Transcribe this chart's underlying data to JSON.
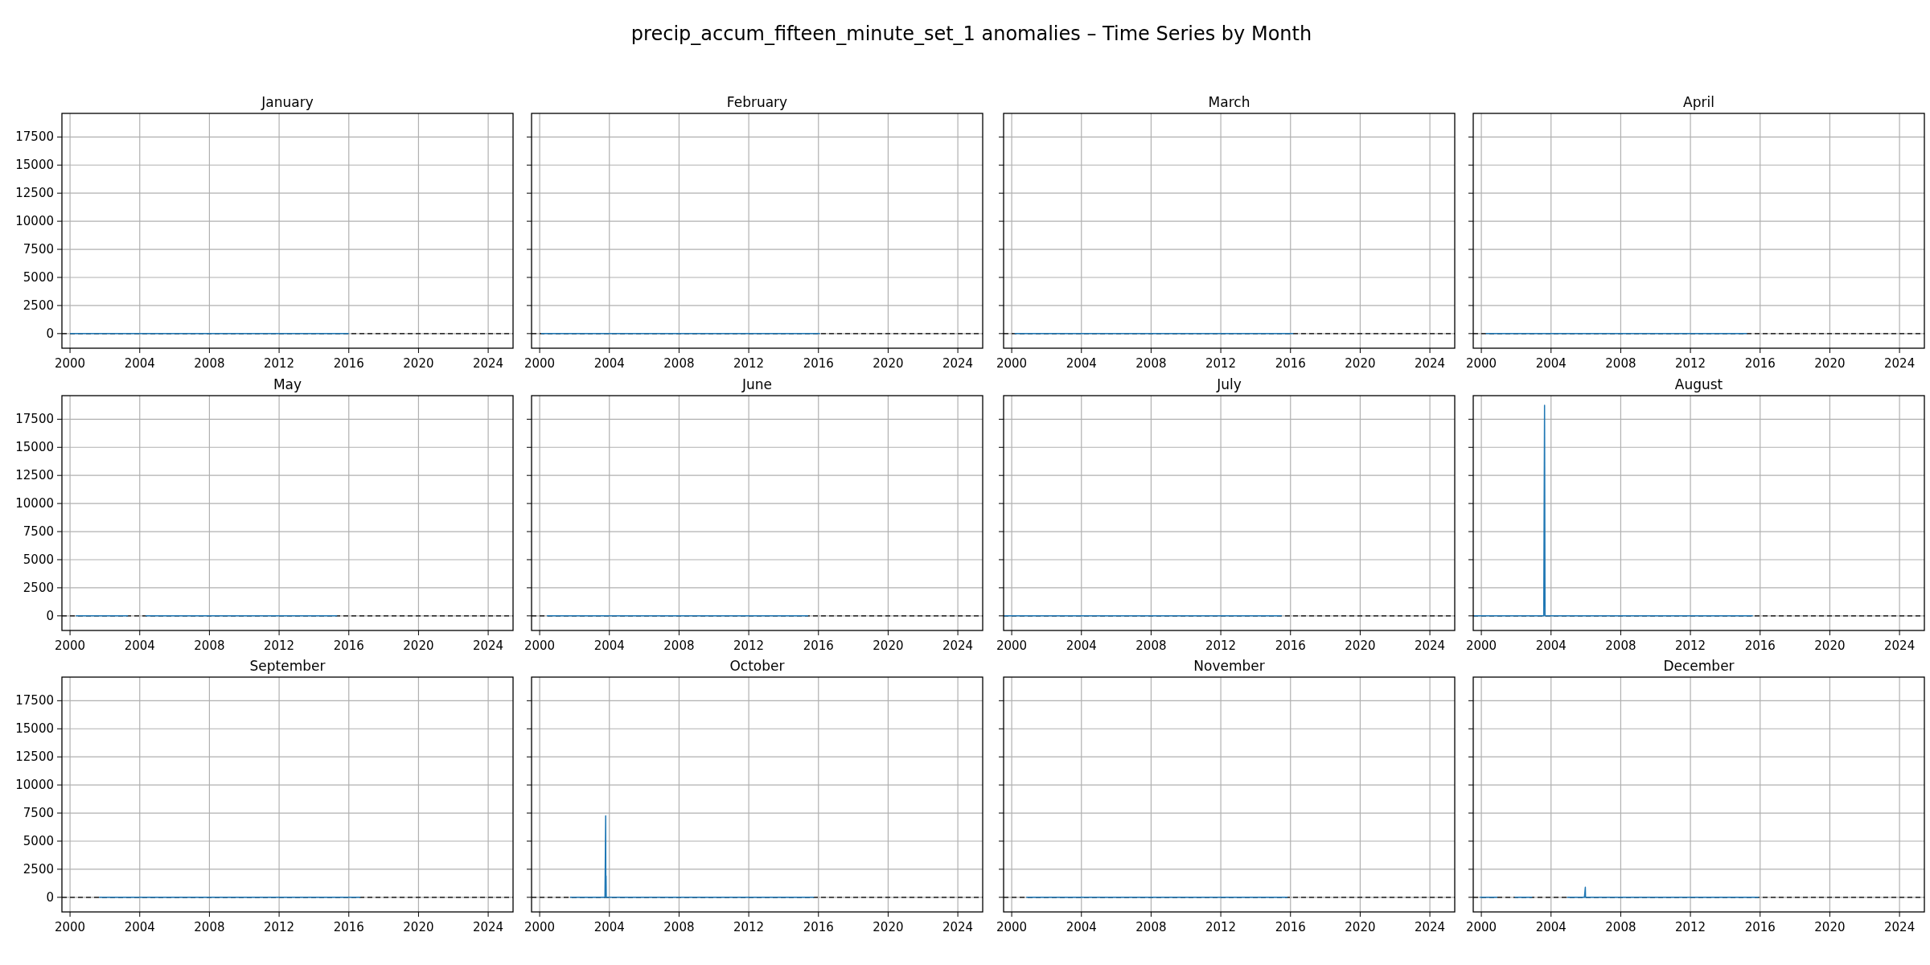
{
  "chart_data": [
    {
      "type": "line",
      "title": "January",
      "annotations": [
        "precip_accum_fifteen_minute_set_1 anomalies – Time Series by Month"
      ],
      "xlim": [
        "1999-07-15",
        "2025-06-05"
      ],
      "ylim": [
        -1300,
        19600
      ],
      "xticks": [
        "2000",
        "2004",
        "2008",
        "2012",
        "2016",
        "2020",
        "2024"
      ],
      "yticks": [
        0,
        2500,
        5000,
        7500,
        10000,
        12500,
        15000,
        17500
      ],
      "grid": true,
      "ref_lines": [
        {
          "axis": "y",
          "value": 0,
          "color": "#000000",
          "line_style": "dashed"
        }
      ],
      "series": [
        {
          "color": "#1f77b4",
          "x": [
            "2000-01",
            "2001-01",
            "2002-01",
            "2003-01",
            "2004-01",
            "2005-01",
            "2006-01",
            "2007-01",
            "2008-01",
            "2009-01",
            "2010-01",
            "2011-01",
            "2012-01",
            "2013-01",
            "2014-01",
            "2015-01",
            "2016-01"
          ],
          "values": [
            0,
            0,
            0,
            0,
            0,
            0,
            0,
            0,
            0,
            0,
            0,
            0,
            0,
            0,
            0,
            0,
            0
          ]
        }
      ]
    },
    {
      "type": "line",
      "title": "February",
      "tick_labels": "x",
      "xlim": [
        "1999-07-15",
        "2025-06-05"
      ],
      "ylim": [
        -1300,
        19600
      ],
      "xticks": [
        "2000",
        "2004",
        "2008",
        "2012",
        "2016",
        "2020",
        "2024"
      ],
      "yticks": [
        0,
        2500,
        5000,
        7500,
        10000,
        12500,
        15000,
        17500
      ],
      "grid": true,
      "ref_lines": [
        {
          "axis": "y",
          "value": 0,
          "color": "#000000",
          "line_style": "dashed"
        }
      ],
      "series": [
        {
          "color": "#1f77b4",
          "x": [
            "2000-02",
            "2001-02",
            "2002-02",
            "2003-02",
            "2004-02",
            "2005-02",
            "2006-02",
            "2007-02",
            "2008-02",
            "2009-02",
            "2010-02",
            "2011-02",
            "2012-02",
            "2013-02",
            "2014-02",
            "2015-02",
            "2016-02"
          ],
          "values": [
            0,
            0,
            0,
            0,
            0,
            0,
            0,
            0,
            0,
            0,
            0,
            0,
            0,
            0,
            0,
            0,
            0
          ]
        }
      ]
    },
    {
      "type": "line",
      "title": "March",
      "tick_labels": "x",
      "xlim": [
        "1999-07-15",
        "2025-06-05"
      ],
      "ylim": [
        -1300,
        19600
      ],
      "xticks": [
        "2000",
        "2004",
        "2008",
        "2012",
        "2016",
        "2020",
        "2024"
      ],
      "yticks": [
        0,
        2500,
        5000,
        7500,
        10000,
        12500,
        15000,
        17500
      ],
      "grid": true,
      "ref_lines": [
        {
          "axis": "y",
          "value": 0,
          "color": "#000000",
          "line_style": "dashed"
        }
      ],
      "series": [
        {
          "color": "#1f77b4",
          "x": [
            "2000-03",
            "2001-03",
            "2002-03",
            "2003-03",
            "2004-03",
            "2005-03",
            "2006-03",
            "2007-03",
            "2008-03",
            "2009-03",
            "2010-03",
            "2011-03",
            "2012-03",
            "2013-03",
            "2014-03",
            "2015-03",
            "2016-03"
          ],
          "values": [
            0,
            0,
            0,
            0,
            0,
            0,
            0,
            0,
            0,
            0,
            0,
            0,
            0,
            0,
            0,
            0,
            0
          ]
        }
      ]
    },
    {
      "type": "line",
      "title": "April",
      "tick_labels": "x",
      "xlim": [
        "1999-07-15",
        "2025-06-05"
      ],
      "ylim": [
        -1300,
        19600
      ],
      "xticks": [
        "2000",
        "2004",
        "2008",
        "2012",
        "2016",
        "2020",
        "2024"
      ],
      "yticks": [
        0,
        2500,
        5000,
        7500,
        10000,
        12500,
        15000,
        17500
      ],
      "grid": true,
      "ref_lines": [
        {
          "axis": "y",
          "value": 0,
          "color": "#000000",
          "line_style": "dashed"
        }
      ],
      "series": [
        {
          "color": "#1f77b4",
          "x": [
            "2000-04",
            "2001-04",
            "2002-04",
            "2003-04",
            "2004-04",
            "2005-04",
            "2006-04",
            "2007-04",
            "2008-04",
            "2009-04",
            "2010-04",
            "2011-04",
            "2012-04",
            "2013-04",
            "2014-04",
            "2015-04"
          ],
          "values": [
            0,
            0,
            0,
            0,
            0,
            0,
            0,
            0,
            0,
            0,
            0,
            0,
            0,
            0,
            0,
            0
          ]
        }
      ]
    },
    {
      "type": "line",
      "title": "May",
      "xlim": [
        "1999-07-15",
        "2025-06-05"
      ],
      "ylim": [
        -1300,
        19600
      ],
      "xticks": [
        "2000",
        "2004",
        "2008",
        "2012",
        "2016",
        "2020",
        "2024"
      ],
      "yticks": [
        0,
        2500,
        5000,
        7500,
        10000,
        12500,
        15000,
        17500
      ],
      "grid": true,
      "ref_lines": [
        {
          "axis": "y",
          "value": 0,
          "color": "#000000",
          "line_style": "dashed"
        }
      ],
      "series": [
        {
          "color": "#1f77b4",
          "x": [
            "2000-05",
            "2001-05",
            "2002-05",
            "2003-05",
            "2003-11",
            "2004-05",
            "2005-05",
            "2006-05",
            "2007-05",
            "2008-05",
            "2009-05",
            "2010-05",
            "2011-05",
            "2012-05",
            "2013-05",
            "2014-05",
            "2015-05"
          ],
          "values": [
            0,
            0,
            0,
            0,
            null,
            0,
            0,
            0,
            0,
            0,
            0,
            0,
            0,
            0,
            0,
            0,
            0
          ]
        }
      ]
    },
    {
      "type": "line",
      "title": "June",
      "tick_labels": "x",
      "xlim": [
        "1999-07-15",
        "2025-06-05"
      ],
      "ylim": [
        -1300,
        19600
      ],
      "xticks": [
        "2000",
        "2004",
        "2008",
        "2012",
        "2016",
        "2020",
        "2024"
      ],
      "yticks": [
        0,
        2500,
        5000,
        7500,
        10000,
        12500,
        15000,
        17500
      ],
      "grid": true,
      "ref_lines": [
        {
          "axis": "y",
          "value": 0,
          "color": "#000000",
          "line_style": "dashed"
        }
      ],
      "series": [
        {
          "color": "#1f77b4",
          "x": [
            "2000-06",
            "2001-06",
            "2002-06",
            "2003-06",
            "2004-06",
            "2005-06",
            "2006-06",
            "2007-06",
            "2008-06",
            "2009-06",
            "2010-06",
            "2011-06",
            "2012-06",
            "2013-06",
            "2014-06",
            "2015-06"
          ],
          "values": [
            0,
            0,
            0,
            0,
            0,
            0,
            0,
            0,
            0,
            0,
            0,
            0,
            0,
            0,
            0,
            0
          ]
        }
      ]
    },
    {
      "type": "line",
      "title": "July",
      "tick_labels": "x",
      "xlim": [
        "1999-07-15",
        "2025-06-05"
      ],
      "ylim": [
        -1300,
        19600
      ],
      "xticks": [
        "2000",
        "2004",
        "2008",
        "2012",
        "2016",
        "2020",
        "2024"
      ],
      "yticks": [
        0,
        2500,
        5000,
        7500,
        10000,
        12500,
        15000,
        17500
      ],
      "grid": true,
      "ref_lines": [
        {
          "axis": "y",
          "value": 0,
          "color": "#000000",
          "line_style": "dashed"
        }
      ],
      "series": [
        {
          "color": "#1f77b4",
          "x": [
            "1999-07-20",
            "2000-07",
            "2001-07",
            "2002-07",
            "2003-07",
            "2004-07",
            "2005-07",
            "2006-07",
            "2007-07",
            "2008-07",
            "2009-07",
            "2010-07",
            "2011-07",
            "2012-07",
            "2013-07",
            "2014-07",
            "2015-07"
          ],
          "values": [
            0,
            0,
            0,
            0,
            0,
            0,
            0,
            0,
            0,
            0,
            0,
            0,
            0,
            0,
            0,
            0,
            0
          ]
        }
      ]
    },
    {
      "type": "line",
      "title": "August",
      "tick_labels": "x",
      "xlim": [
        "1999-07-15",
        "2025-06-05"
      ],
      "ylim": [
        -1300,
        19600
      ],
      "xticks": [
        "2000",
        "2004",
        "2008",
        "2012",
        "2016",
        "2020",
        "2024"
      ],
      "yticks": [
        0,
        2500,
        5000,
        7500,
        10000,
        12500,
        15000,
        17500
      ],
      "grid": true,
      "ref_lines": [
        {
          "axis": "y",
          "value": 0,
          "color": "#000000",
          "line_style": "dashed"
        }
      ],
      "series": [
        {
          "color": "#1f77b4",
          "x": [
            "1999-08",
            "2000-08",
            "2001-08",
            "2002-08",
            "2003-08",
            "2003-08-18",
            "2003-08-28",
            "2004-08",
            "2005-08",
            "2006-08",
            "2007-08",
            "2008-08",
            "2009-08",
            "2010-08",
            "2011-08",
            "2012-08",
            "2013-08",
            "2014-08",
            "2015-08"
          ],
          "values": [
            0,
            0,
            0,
            0,
            0,
            18750,
            0,
            0,
            0,
            0,
            0,
            0,
            0,
            0,
            0,
            0,
            0,
            0,
            0
          ]
        }
      ]
    },
    {
      "type": "line",
      "title": "September",
      "xlim": [
        "1999-07-15",
        "2025-06-05"
      ],
      "ylim": [
        -1300,
        19600
      ],
      "xticks": [
        "2000",
        "2004",
        "2008",
        "2012",
        "2016",
        "2020",
        "2024"
      ],
      "yticks": [
        0,
        2500,
        5000,
        7500,
        10000,
        12500,
        15000,
        17500
      ],
      "grid": true,
      "ref_lines": [
        {
          "axis": "y",
          "value": 0,
          "color": "#000000",
          "line_style": "dashed"
        }
      ],
      "series": [
        {
          "color": "#1f77b4",
          "x": [
            "2001-09",
            "2002-09",
            "2003-09",
            "2004-09",
            "2005-09",
            "2006-09",
            "2007-09",
            "2008-09",
            "2009-09",
            "2010-09",
            "2011-09",
            "2012-09",
            "2013-09",
            "2014-09",
            "2015-09",
            "2016-09"
          ],
          "values": [
            0,
            0,
            0,
            0,
            0,
            0,
            0,
            0,
            0,
            0,
            0,
            0,
            0,
            0,
            0,
            0
          ]
        }
      ]
    },
    {
      "type": "line",
      "title": "October",
      "tick_labels": "x",
      "xlim": [
        "1999-07-15",
        "2025-06-05"
      ],
      "ylim": [
        -1300,
        19600
      ],
      "xticks": [
        "2000",
        "2004",
        "2008",
        "2012",
        "2016",
        "2020",
        "2024"
      ],
      "yticks": [
        0,
        2500,
        5000,
        7500,
        10000,
        12500,
        15000,
        17500
      ],
      "grid": true,
      "ref_lines": [
        {
          "axis": "y",
          "value": 0,
          "color": "#000000",
          "line_style": "dashed"
        }
      ],
      "series": [
        {
          "color": "#1f77b4",
          "x": [
            "2001-10",
            "2002-10",
            "2003-10",
            "2003-10-16",
            "2003-10-20",
            "2003-10-24",
            "2003-10-28",
            "2004-10",
            "2005-10",
            "2006-10",
            "2007-10",
            "2008-10",
            "2009-10",
            "2010-10",
            "2011-10",
            "2012-10",
            "2013-10",
            "2014-10",
            "2015-10"
          ],
          "values": [
            0,
            0,
            0,
            7250,
            0,
            1900,
            0,
            0,
            0,
            0,
            0,
            0,
            0,
            0,
            0,
            0,
            0,
            0,
            0
          ]
        }
      ]
    },
    {
      "type": "line",
      "title": "November",
      "tick_labels": "x",
      "xlim": [
        "1999-07-15",
        "2025-06-05"
      ],
      "ylim": [
        -1300,
        19600
      ],
      "xticks": [
        "2000",
        "2004",
        "2008",
        "2012",
        "2016",
        "2020",
        "2024"
      ],
      "yticks": [
        0,
        2500,
        5000,
        7500,
        10000,
        12500,
        15000,
        17500
      ],
      "grid": true,
      "ref_lines": [
        {
          "axis": "y",
          "value": 0,
          "color": "#000000",
          "line_style": "dashed"
        }
      ],
      "series": [
        {
          "color": "#1f77b4",
          "x": [
            "2000-11",
            "2001-11",
            "2002-11",
            "2003-11",
            "2004-11",
            "2005-11",
            "2006-11",
            "2007-11",
            "2008-11",
            "2009-11",
            "2010-11",
            "2011-11",
            "2012-11",
            "2013-11",
            "2014-11",
            "2015-11"
          ],
          "values": [
            0,
            0,
            0,
            0,
            0,
            0,
            0,
            0,
            0,
            0,
            0,
            0,
            0,
            0,
            0,
            0
          ]
        }
      ]
    },
    {
      "type": "line",
      "title": "December",
      "tick_labels": "x",
      "xlim": [
        "1999-07-15",
        "2025-06-05"
      ],
      "ylim": [
        -1300,
        19600
      ],
      "xticks": [
        "2000",
        "2004",
        "2008",
        "2012",
        "2016",
        "2020",
        "2024"
      ],
      "yticks": [
        0,
        2500,
        5000,
        7500,
        10000,
        12500,
        15000,
        17500
      ],
      "grid": true,
      "ref_lines": [
        {
          "axis": "y",
          "value": 0,
          "color": "#000000",
          "line_style": "dashed"
        }
      ],
      "series": [
        {
          "color": "#1f77b4",
          "x": [
            "1999-12",
            "2000-12",
            "2001-06",
            "2001-12",
            "2002-12",
            "2003-06",
            "2004-12",
            "2005-12",
            "2005-12-20",
            "2005-12-24",
            "2006-12",
            "2007-12",
            "2008-12",
            "2009-12",
            "2010-12",
            "2011-12",
            "2012-12",
            "2013-12",
            "2014-12",
            "2015-12"
          ],
          "values": [
            0,
            0,
            null,
            0,
            0,
            null,
            0,
            0,
            900,
            0,
            0,
            0,
            0,
            0,
            0,
            0,
            0,
            0,
            0,
            0
          ]
        }
      ]
    }
  ]
}
